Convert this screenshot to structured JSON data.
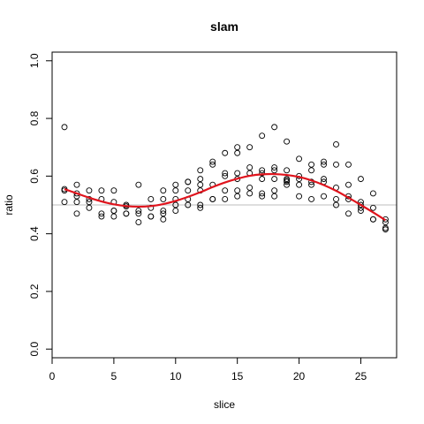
{
  "chart_data": {
    "type": "scatter",
    "title": "slam",
    "xlabel": "slice",
    "ylabel": "ratio",
    "xlim": [
      0,
      27.9
    ],
    "ylim": [
      -0.03,
      1.03
    ],
    "x_ticks": [
      0,
      5,
      10,
      15,
      20,
      25
    ],
    "x_tick_labels": [
      "0",
      "5",
      "10",
      "15",
      "20",
      "25"
    ],
    "y_ticks": [
      0.0,
      0.2,
      0.4,
      0.6,
      0.8,
      1.0
    ],
    "y_tick_labels": [
      "0.0",
      "0.2",
      "0.4",
      "0.6",
      "0.8",
      "1.0"
    ],
    "grid": false,
    "reference_line": {
      "y": 0.5,
      "color": "#bdbdbd"
    },
    "colors": {
      "points": "#000000",
      "fit": "#e0141d",
      "reference": "#bdbdbd"
    },
    "points": [
      [
        1,
        0.77
      ],
      [
        1,
        0.555
      ],
      [
        1,
        0.55
      ],
      [
        1,
        0.51
      ],
      [
        2,
        0.57
      ],
      [
        2,
        0.54
      ],
      [
        2,
        0.53
      ],
      [
        2,
        0.51
      ],
      [
        2,
        0.47
      ],
      [
        3,
        0.55
      ],
      [
        3,
        0.52
      ],
      [
        3,
        0.51
      ],
      [
        3,
        0.49
      ],
      [
        4,
        0.55
      ],
      [
        4,
        0.52
      ],
      [
        4,
        0.47
      ],
      [
        4,
        0.46
      ],
      [
        5,
        0.55
      ],
      [
        5,
        0.51
      ],
      [
        5,
        0.48
      ],
      [
        5,
        0.48
      ],
      [
        5,
        0.46
      ],
      [
        6,
        0.5
      ],
      [
        6,
        0.495
      ],
      [
        6,
        0.47
      ],
      [
        6,
        0.47
      ],
      [
        7,
        0.57
      ],
      [
        7,
        0.48
      ],
      [
        7,
        0.47
      ],
      [
        7,
        0.44
      ],
      [
        8,
        0.52
      ],
      [
        8,
        0.49
      ],
      [
        8,
        0.46
      ],
      [
        8,
        0.46
      ],
      [
        9,
        0.55
      ],
      [
        9,
        0.52
      ],
      [
        9,
        0.48
      ],
      [
        9,
        0.47
      ],
      [
        9,
        0.45
      ],
      [
        10,
        0.57
      ],
      [
        10,
        0.55
      ],
      [
        10,
        0.52
      ],
      [
        10,
        0.5
      ],
      [
        10,
        0.48
      ],
      [
        11,
        0.58
      ],
      [
        11,
        0.58
      ],
      [
        11,
        0.55
      ],
      [
        11,
        0.52
      ],
      [
        11,
        0.5
      ],
      [
        12,
        0.62
      ],
      [
        12,
        0.59
      ],
      [
        12,
        0.57
      ],
      [
        12,
        0.55
      ],
      [
        12,
        0.5
      ],
      [
        12,
        0.49
      ],
      [
        13,
        0.65
      ],
      [
        13,
        0.64
      ],
      [
        13,
        0.57
      ],
      [
        13,
        0.52
      ],
      [
        13,
        0.52
      ],
      [
        14,
        0.68
      ],
      [
        14,
        0.61
      ],
      [
        14,
        0.6
      ],
      [
        14,
        0.55
      ],
      [
        14,
        0.52
      ],
      [
        15,
        0.7
      ],
      [
        15,
        0.68
      ],
      [
        15,
        0.61
      ],
      [
        15,
        0.59
      ],
      [
        15,
        0.55
      ],
      [
        15,
        0.53
      ],
      [
        16,
        0.7
      ],
      [
        16,
        0.63
      ],
      [
        16,
        0.61
      ],
      [
        16,
        0.56
      ],
      [
        16,
        0.54
      ],
      [
        17,
        0.74
      ],
      [
        17,
        0.62
      ],
      [
        17,
        0.61
      ],
      [
        17,
        0.59
      ],
      [
        17,
        0.54
      ],
      [
        17,
        0.53
      ],
      [
        18,
        0.77
      ],
      [
        18,
        0.63
      ],
      [
        18,
        0.62
      ],
      [
        18,
        0.59
      ],
      [
        18,
        0.55
      ],
      [
        18,
        0.53
      ],
      [
        19,
        0.72
      ],
      [
        19,
        0.62
      ],
      [
        19,
        0.59
      ],
      [
        19,
        0.585
      ],
      [
        19,
        0.58
      ],
      [
        19,
        0.57
      ],
      [
        20,
        0.66
      ],
      [
        20,
        0.6
      ],
      [
        20,
        0.59
      ],
      [
        20,
        0.57
      ],
      [
        20,
        0.53
      ],
      [
        21,
        0.64
      ],
      [
        21,
        0.62
      ],
      [
        21,
        0.58
      ],
      [
        21,
        0.57
      ],
      [
        21,
        0.52
      ],
      [
        22,
        0.65
      ],
      [
        22,
        0.64
      ],
      [
        22,
        0.59
      ],
      [
        22,
        0.58
      ],
      [
        22,
        0.53
      ],
      [
        23,
        0.71
      ],
      [
        23,
        0.64
      ],
      [
        23,
        0.56
      ],
      [
        23,
        0.52
      ],
      [
        23,
        0.5
      ],
      [
        24,
        0.64
      ],
      [
        24,
        0.57
      ],
      [
        24,
        0.53
      ],
      [
        24,
        0.52
      ],
      [
        24,
        0.47
      ],
      [
        25,
        0.59
      ],
      [
        25,
        0.51
      ],
      [
        25,
        0.5
      ],
      [
        25,
        0.49
      ],
      [
        25,
        0.48
      ],
      [
        26,
        0.54
      ],
      [
        26,
        0.49
      ],
      [
        26,
        0.45
      ],
      [
        26,
        0.45
      ],
      [
        27,
        0.45
      ],
      [
        27,
        0.44
      ],
      [
        27,
        0.42
      ],
      [
        27,
        0.415
      ]
    ],
    "fit_curve": [
      [
        1,
        0.555
      ],
      [
        2,
        0.54
      ],
      [
        3,
        0.525
      ],
      [
        4,
        0.512
      ],
      [
        5,
        0.502
      ],
      [
        6,
        0.496
      ],
      [
        7,
        0.494
      ],
      [
        8,
        0.496
      ],
      [
        9,
        0.503
      ],
      [
        10,
        0.514
      ],
      [
        11,
        0.528
      ],
      [
        12,
        0.544
      ],
      [
        13,
        0.562
      ],
      [
        14,
        0.578
      ],
      [
        15,
        0.591
      ],
      [
        16,
        0.601
      ],
      [
        17,
        0.606
      ],
      [
        18,
        0.607
      ],
      [
        19,
        0.604
      ],
      [
        20,
        0.597
      ],
      [
        21,
        0.585
      ],
      [
        22,
        0.569
      ],
      [
        23,
        0.549
      ],
      [
        24,
        0.525
      ],
      [
        25,
        0.5
      ],
      [
        26,
        0.474
      ],
      [
        27,
        0.447
      ]
    ]
  }
}
